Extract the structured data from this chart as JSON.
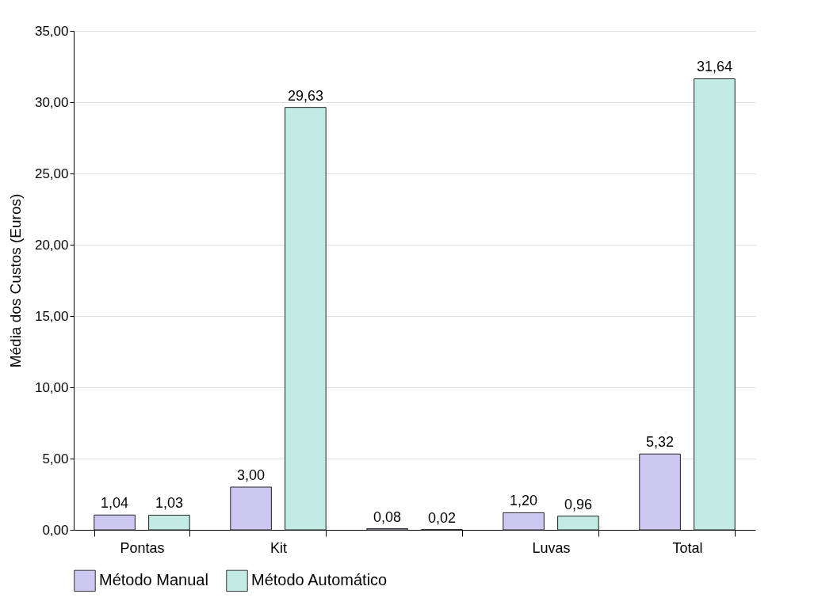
{
  "chart_data": {
    "type": "bar",
    "ylabel": "Média dos Custos (Euros)",
    "categories": [
      "Pontas",
      "Kit",
      null,
      "Luvas",
      "Total"
    ],
    "series": [
      {
        "name": "Método Manual",
        "color": "#cdc8f2",
        "values": [
          1.04,
          3.0,
          0.08,
          1.2,
          5.32
        ],
        "value_labels": [
          "1,04",
          "3,00",
          "0,08",
          "1,20",
          "5,32"
        ]
      },
      {
        "name": "Método Automático",
        "color": "#c3ebe5",
        "values": [
          1.03,
          29.63,
          0.02,
          0.96,
          31.64
        ],
        "value_labels": [
          "1,03",
          "29,63",
          "0,02",
          "0,96",
          "31,64"
        ]
      }
    ],
    "ylim": [
      0,
      35
    ],
    "yticks": [
      {
        "value": 0,
        "label": "0,00"
      },
      {
        "value": 5,
        "label": "5,00"
      },
      {
        "value": 10,
        "label": "10,00"
      },
      {
        "value": 15,
        "label": "15,00"
      },
      {
        "value": 20,
        "label": "20,00"
      },
      {
        "value": 25,
        "label": "25,00"
      },
      {
        "value": 30,
        "label": "30,00"
      },
      {
        "value": 35,
        "label": "35,00"
      }
    ],
    "grid": "y",
    "legend": "bottom"
  }
}
